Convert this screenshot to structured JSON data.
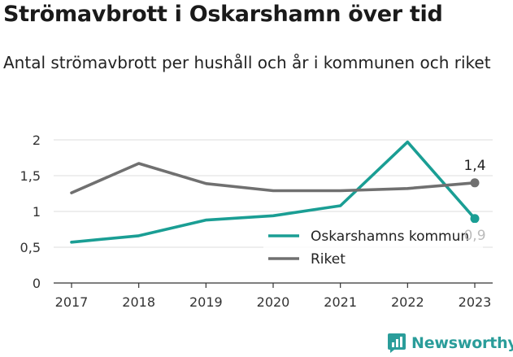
{
  "header": {
    "title": "Strömavbrott i Oskarshamn över tid",
    "subtitle": "Antal strömavbrott per hushåll och år i kommunen och riket"
  },
  "brand": {
    "name": "Newsworthy"
  },
  "chart_data": {
    "type": "line",
    "categories": [
      "2017",
      "2018",
      "2019",
      "2020",
      "2021",
      "2022",
      "2023"
    ],
    "series": [
      {
        "name": "Oskarshamns kommun",
        "color": "#1a9e94",
        "values": [
          0.57,
          0.66,
          0.88,
          0.94,
          1.08,
          1.97,
          0.9
        ],
        "end_label": "0,9"
      },
      {
        "name": "Riket",
        "color": "#707070",
        "values": [
          1.26,
          1.67,
          1.39,
          1.29,
          1.29,
          1.32,
          1.4
        ],
        "end_label": "1,4"
      }
    ],
    "yticks": [
      "0",
      "0,5",
      "1",
      "1,5",
      "2"
    ],
    "ylim": [
      0,
      2
    ],
    "grid": true,
    "legend": "bottom-right"
  }
}
